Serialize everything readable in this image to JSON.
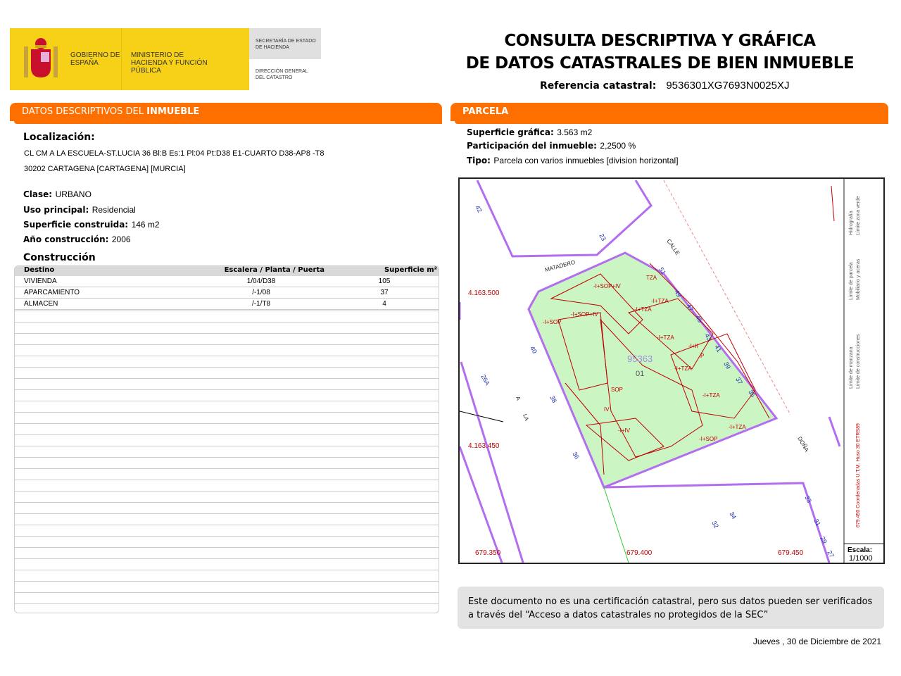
{
  "header": {
    "gobierno": "GOBIERNO DE ESPAÑA",
    "ministerio": "MINISTERIO DE HACIENDA Y FUNCIÓN PÚBLICA",
    "secretaria": "SECRETARÍA DE ESTADO DE HACIENDA",
    "direccion": "DIRECCIÓN GENERAL DEL CATASTRO",
    "title_line1": "CONSULTA DESCRIPTIVA Y GRÁFICA",
    "title_line2": "DE DATOS CATASTRALES DE BIEN INMUEBLE",
    "ref_label": "Referencia catastral:",
    "ref_value": "9536301XG7693N0025XJ"
  },
  "left": {
    "section_title_a": "DATOS DESCRIPTIVOS DEL ",
    "section_title_b": "INMUEBLE",
    "localizacion_label": "Localización:",
    "address_line1": "CL CM A LA ESCUELA-ST.LUCIA 36 Bl:B Es:1 Pl:04 Pt:D38 E1-CUARTO  D38-AP8 -T8",
    "address_line2": "30202 CARTAGENA [CARTAGENA] [MURCIA]",
    "clase_label": "Clase:",
    "clase": "URBANO",
    "uso_label": "Uso principal:",
    "uso": "Residencial",
    "sup_label": "Superficie construida:",
    "sup": "146 m2",
    "anio_label": "Año construcción:",
    "anio": "2006",
    "construccion_label": "Construcción",
    "table": {
      "headers": [
        "Destino",
        "Escalera / Planta / Puerta",
        "Superficie m²"
      ],
      "rows": [
        [
          "VIVIENDA",
          "1/04/D38",
          "105"
        ],
        [
          "APARCAMIENTO",
          "/-1/08",
          "37"
        ],
        [
          "ALMACEN",
          "/-1/T8",
          "4"
        ]
      ]
    }
  },
  "right": {
    "section_title": "PARCELA",
    "sup_label": "Superficie gráfica:",
    "sup": "3.563 m2",
    "part_label": "Participación del inmueble:",
    "part": "2,2500 %",
    "tipo_label": "Tipo:",
    "tipo": "Parcela con varios inmuebles [division horizontal]"
  },
  "map": {
    "parcel": "95363",
    "parcel_sub": "01",
    "streets": [
      "MATADERO",
      "CALLE",
      "A",
      "LA",
      "DOÑA"
    ],
    "coords": {
      "y1": "4.163.500",
      "y2": "4.163.450",
      "x1": "679.350",
      "x2": "679.400",
      "x3": "679.450"
    },
    "numbers": [
      "42",
      "23",
      "51",
      "49",
      "47",
      "45",
      "43",
      "41",
      "39",
      "37",
      "35",
      "40",
      "38",
      "36",
      "26A",
      "33",
      "31",
      "29",
      "27",
      "32",
      "34"
    ],
    "buildings": [
      "-I+SOP+IV",
      "-I+SOP+IV",
      "-I+TZA",
      "-I+TZA",
      "-I+TZA",
      "-I+II",
      "-I+TZA",
      "-I+TZA",
      "-I+TZA",
      "-I+SOP",
      "IV",
      "SOP",
      "-I+IV",
      "-I+SOP",
      "TZA",
      "P"
    ],
    "legend": {
      "l1": "Límite de manzana",
      "l2": "Límite de parcela",
      "l3": "Hidrografía",
      "l4": "Límite de construcciones",
      "l5": "Mobiliario y aceras",
      "l6": "Límite zona verde",
      "coords_note": "679.450 Coordenadas U.T.M. Huso 30 ETRS89"
    },
    "scale_label": "Escala:",
    "scale": "1/1000"
  },
  "disclaimer": "Este documento no es una certificación catastral, pero sus datos pueden ser verificados a través del “Acceso a datos catastrales no protegidos de la SEC”",
  "date": "Jueves , 30 de Diciembre de 2021",
  "colors": {
    "orange": "#ff6f00",
    "yellow": "#f7d117",
    "parcel_fill": "#ccf5c4",
    "manzana": "#b36ef0",
    "construction": "#c00000"
  }
}
